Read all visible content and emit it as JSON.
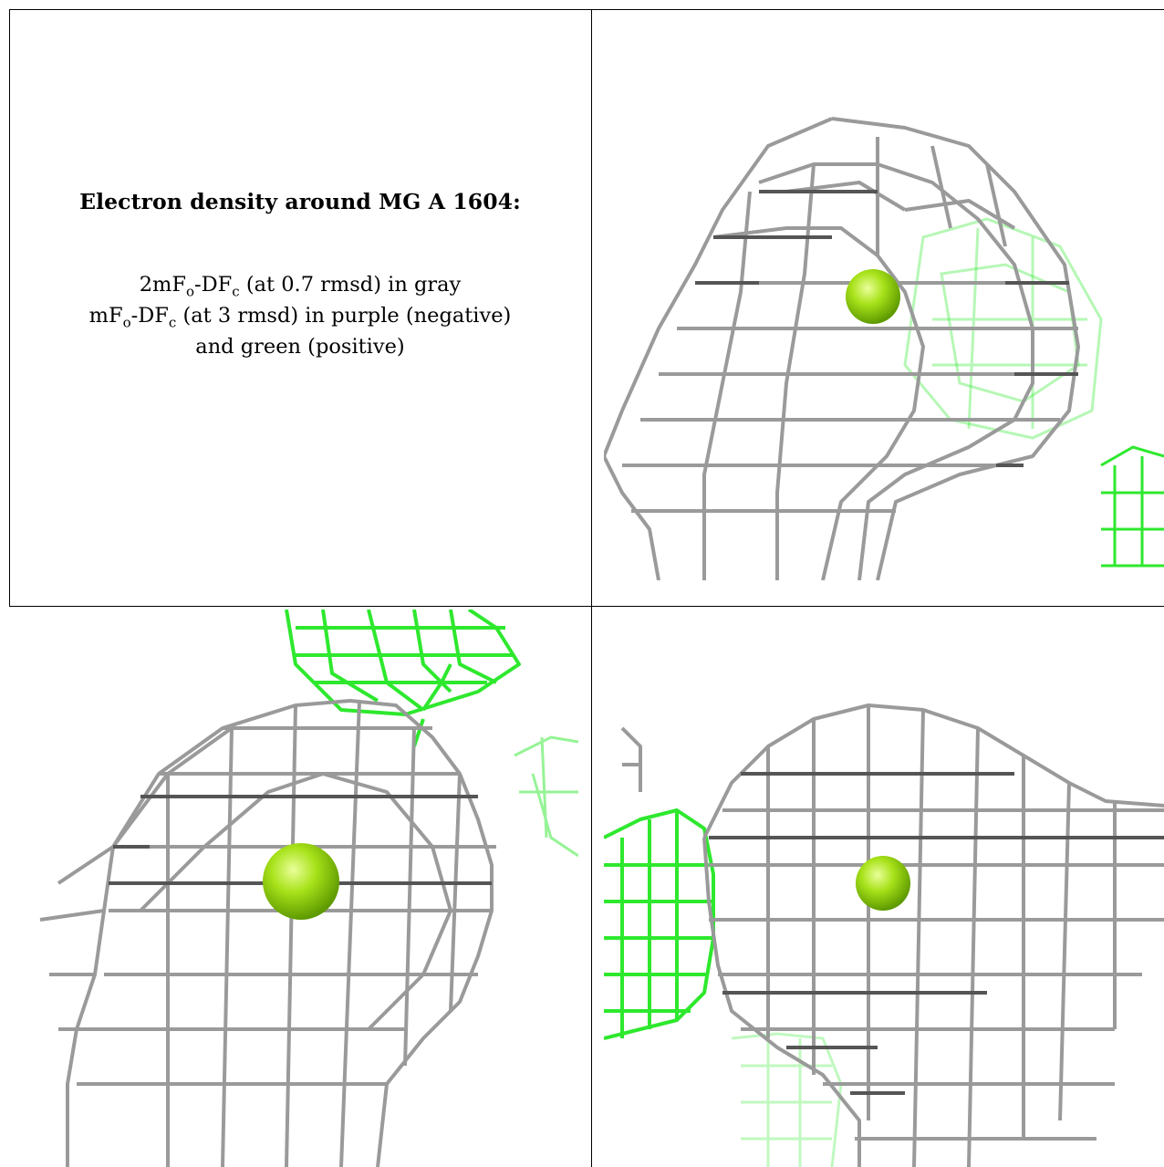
{
  "caption": {
    "title": "Electron density around MG A 1604:",
    "line1": {
      "prefix": "2mF",
      "sub1": "o",
      "mid": "-DF",
      "sub2": "c",
      "suffix": " (at 0.7 rmsd) in gray"
    },
    "line2": {
      "prefix": "mF",
      "sub1": "o",
      "mid": "-DF",
      "sub2": "c",
      "suffix": " (at 3 rmsd) in purple (negative)"
    },
    "line3": "and green (positive)"
  },
  "colors": {
    "map_2fofc": "#9a9a9a",
    "map_2fofc_dark": "#555555",
    "map_fofc_positive": "#2ee82e",
    "atom_mg": "#9ee010",
    "border": "#000000"
  },
  "panels": [
    {
      "id": "view-1",
      "atom": "MG"
    },
    {
      "id": "view-2",
      "atom": "MG"
    },
    {
      "id": "view-3",
      "atom": "MG"
    }
  ]
}
